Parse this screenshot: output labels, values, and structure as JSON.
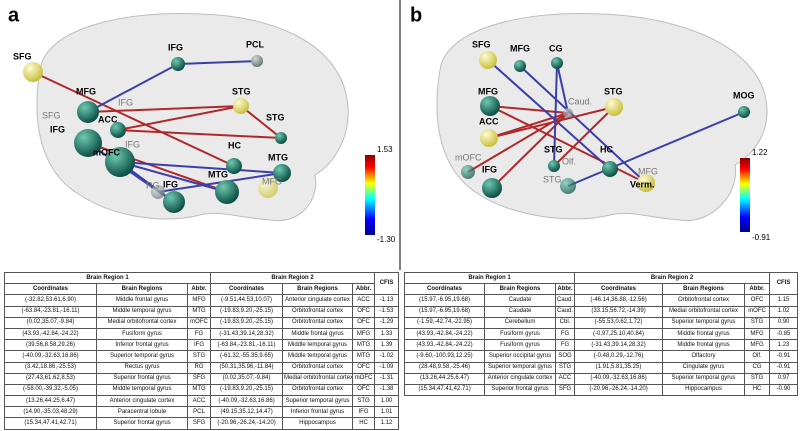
{
  "panel_a": {
    "label": "a",
    "nodes": [
      "SFG",
      "PCL",
      "IFG",
      "MFG",
      "IFG",
      "SFG",
      "ACC",
      "IFG",
      "IFG",
      "mOFC",
      "STG",
      "STG",
      "MTG",
      "HC",
      "MTG",
      "MFG",
      "RG",
      "IFG"
    ],
    "colorbar": {
      "max": "1.53",
      "min": "-1.30"
    }
  },
  "panel_b": {
    "label": "b",
    "nodes": [
      "SFG",
      "MFG",
      "CG",
      "MFG",
      "Caud.",
      "ACC",
      "STG",
      "MOG",
      "mOFC",
      "IFG",
      "STG",
      "Olf.",
      "STG",
      "HC",
      "MFG",
      "Verm."
    ],
    "colorbar": {
      "max": "1.22",
      "min": "-0.91"
    }
  },
  "table_a": {
    "group_headers": [
      "Brain Region 1",
      "Brain Region 2",
      "CFIS"
    ],
    "columns": [
      "Coordinates",
      "Brain Regions",
      "Abbr.",
      "Coordinates",
      "Brain Regions",
      "Abbr."
    ],
    "rows": [
      [
        "(-32.82,53.61,6.90)",
        "Middle frontal gyrus",
        "MFG",
        "(-9.51,44.53,10.07)",
        "Anterior cingulate cortex",
        "ACC",
        "-1.13"
      ],
      [
        "(-63.84,-23.81,-16.11)",
        "Middle temporal gyrus",
        "MTG",
        "(-19.83,9.20,-25.15)",
        "Orbitofrontal cortex",
        "OFC",
        "-1.53"
      ],
      [
        "(0.02,35.07,-9.84)",
        "Medial orbitofrontal cortex",
        "mOFC",
        "(-19.83,9.20,-25.15)",
        "Orbitofrontal cortex",
        "OFC",
        "-1.29"
      ],
      [
        "(43.93,-42.84,-24.22)",
        "Fusiform gyrus",
        "FG",
        "(-31.43,39.14,28.32)",
        "Middle frontal gyrus",
        "MFG",
        "1.33"
      ],
      [
        "(39.56,8.58,29.26)",
        "Inferior frontal gyrus",
        "IFG",
        "(-63.84,-23.81,-16.11)",
        "Middle temporal gyrus",
        "MTG",
        "1.39"
      ],
      [
        "(-40.09,-32.63,16.86)",
        "Superior temporal gyrus",
        "STG",
        "(-61.32,-55.35,9.65)",
        "Middle temporal gyrus",
        "MTG",
        "-1.02"
      ],
      [
        "(3.42,18.86,-25.53)",
        "Rectus gyrus",
        "RG",
        "(50.31,35.96,-11.84)",
        "Orbitofrontal cortex",
        "OFC",
        "-1.09"
      ],
      [
        "(27.43,61.62,8.53)",
        "Superior frontal gyrus",
        "SFG",
        "(0.02,35.07,-9.84)",
        "Medial orbitofrontal cortex",
        "mOFC",
        "-1.31"
      ],
      [
        "(-58.00,-39.32,-5.05)",
        "Middle temporal gyrus",
        "MTG",
        "(-19.83,9.20,-25.15)",
        "Orbitofrontal cortex",
        "OFC",
        "-1.38"
      ],
      [
        "(13.26,44.25,6.47)",
        "Anterior cingulate cortex",
        "ACC",
        "(-40.09,-32.63,16.86)",
        "Superior temporal gyrus",
        "STG",
        "1.00"
      ],
      [
        "(14.90,-35.03,48.29)",
        "Paracentral lobule",
        "PCL",
        "(49.15,35.12,14.47)",
        "Inferior frontal gyrus",
        "IFG",
        "1.01"
      ],
      [
        "(15.34,47.41,42.71)",
        "Superior frontal gyrus",
        "SFG",
        "(-20.96,-26.24,-14.20)",
        "Hippocampus",
        "HC",
        "1.12"
      ]
    ]
  },
  "table_b": {
    "group_headers": [
      "Brain Region 1",
      "Brain Region 2",
      "CFIS"
    ],
    "columns": [
      "Coordinates",
      "Brain Regions",
      "Abbr.",
      "Coordinates",
      "Brain Regions",
      "Abbr."
    ],
    "rows": [
      [
        "(15.97,-6.95,19.68)",
        "Caudate",
        "Caud.",
        "(-46.14,36.88,-12.56)",
        "Orbitofrontal cortex",
        "OFC",
        "1.15"
      ],
      [
        "(15.97,-6.95,19.68)",
        "Caudate",
        "Caud.",
        "(33.15,56.72,-14.39)",
        "Medial orbitofrontal cortex",
        "mOFC",
        "1.02"
      ],
      [
        "(-1.59,-42.74,-22.95)",
        "Cerebellum",
        "Cbl.",
        "(-55.53,0.62,1.72)",
        "Superior temporal gyrus",
        "STG",
        "0.90"
      ],
      [
        "(43.93,-42.84,-24.22)",
        "Fusiform gyrus",
        "FG",
        "(-0.97,25.10,40.84)",
        "Middle frontal gyrus",
        "MFG",
        "-0.85"
      ],
      [
        "(43.93,-42.84,-24.22)",
        "Fusiform gyrus",
        "FG",
        "(-31.43,39.14,28.32)",
        "Middle frontal gyrus",
        "MFG",
        "1.23"
      ],
      [
        "(-9.60,-100.93,12.25)",
        "Superior occipital gyrus",
        "SOG",
        "(-0.48,0.29,-12.76)",
        "Olfactory",
        "Olf.",
        "-0.91"
      ],
      [
        "(28.48,9.58,-25.46)",
        "Superior temporal gyrus",
        "STG",
        "(1.91,5.81,35.25)",
        "Cingulate gyrus",
        "CG",
        "-0.91"
      ],
      [
        "(13.26,44.25,6.47)",
        "Anterior cingulate cortex",
        "ACC",
        "(-40.09,-32.63,16.86)",
        "Superior temporal gyrus",
        "STG",
        "0.97"
      ],
      [
        "(15.34,47.41,42.71)",
        "Superior frontal gyrus",
        "SFG",
        "(-20.96,-26.24,-14.20)",
        "Hippocampus",
        "HC",
        "-0.90"
      ]
    ]
  }
}
